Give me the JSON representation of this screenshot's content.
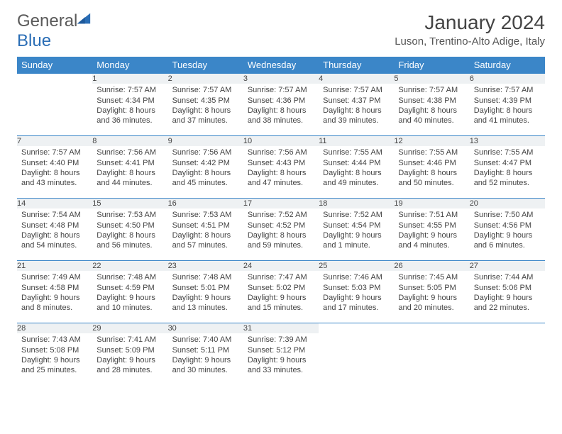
{
  "logo": {
    "part1": "General",
    "part2": "Blue"
  },
  "title": "January 2024",
  "location": "Luson, Trentino-Alto Adige, Italy",
  "colors": {
    "header_bg": "#3b86c8",
    "daynum_bg": "#eef1f3",
    "row_border": "#3b86c8"
  },
  "weekdays": [
    "Sunday",
    "Monday",
    "Tuesday",
    "Wednesday",
    "Thursday",
    "Friday",
    "Saturday"
  ],
  "weeks": [
    [
      null,
      {
        "n": "1",
        "sr": "Sunrise: 7:57 AM",
        "ss": "Sunset: 4:34 PM",
        "d1": "Daylight: 8 hours",
        "d2": "and 36 minutes."
      },
      {
        "n": "2",
        "sr": "Sunrise: 7:57 AM",
        "ss": "Sunset: 4:35 PM",
        "d1": "Daylight: 8 hours",
        "d2": "and 37 minutes."
      },
      {
        "n": "3",
        "sr": "Sunrise: 7:57 AM",
        "ss": "Sunset: 4:36 PM",
        "d1": "Daylight: 8 hours",
        "d2": "and 38 minutes."
      },
      {
        "n": "4",
        "sr": "Sunrise: 7:57 AM",
        "ss": "Sunset: 4:37 PM",
        "d1": "Daylight: 8 hours",
        "d2": "and 39 minutes."
      },
      {
        "n": "5",
        "sr": "Sunrise: 7:57 AM",
        "ss": "Sunset: 4:38 PM",
        "d1": "Daylight: 8 hours",
        "d2": "and 40 minutes."
      },
      {
        "n": "6",
        "sr": "Sunrise: 7:57 AM",
        "ss": "Sunset: 4:39 PM",
        "d1": "Daylight: 8 hours",
        "d2": "and 41 minutes."
      }
    ],
    [
      {
        "n": "7",
        "sr": "Sunrise: 7:57 AM",
        "ss": "Sunset: 4:40 PM",
        "d1": "Daylight: 8 hours",
        "d2": "and 43 minutes."
      },
      {
        "n": "8",
        "sr": "Sunrise: 7:56 AM",
        "ss": "Sunset: 4:41 PM",
        "d1": "Daylight: 8 hours",
        "d2": "and 44 minutes."
      },
      {
        "n": "9",
        "sr": "Sunrise: 7:56 AM",
        "ss": "Sunset: 4:42 PM",
        "d1": "Daylight: 8 hours",
        "d2": "and 45 minutes."
      },
      {
        "n": "10",
        "sr": "Sunrise: 7:56 AM",
        "ss": "Sunset: 4:43 PM",
        "d1": "Daylight: 8 hours",
        "d2": "and 47 minutes."
      },
      {
        "n": "11",
        "sr": "Sunrise: 7:55 AM",
        "ss": "Sunset: 4:44 PM",
        "d1": "Daylight: 8 hours",
        "d2": "and 49 minutes."
      },
      {
        "n": "12",
        "sr": "Sunrise: 7:55 AM",
        "ss": "Sunset: 4:46 PM",
        "d1": "Daylight: 8 hours",
        "d2": "and 50 minutes."
      },
      {
        "n": "13",
        "sr": "Sunrise: 7:55 AM",
        "ss": "Sunset: 4:47 PM",
        "d1": "Daylight: 8 hours",
        "d2": "and 52 minutes."
      }
    ],
    [
      {
        "n": "14",
        "sr": "Sunrise: 7:54 AM",
        "ss": "Sunset: 4:48 PM",
        "d1": "Daylight: 8 hours",
        "d2": "and 54 minutes."
      },
      {
        "n": "15",
        "sr": "Sunrise: 7:53 AM",
        "ss": "Sunset: 4:50 PM",
        "d1": "Daylight: 8 hours",
        "d2": "and 56 minutes."
      },
      {
        "n": "16",
        "sr": "Sunrise: 7:53 AM",
        "ss": "Sunset: 4:51 PM",
        "d1": "Daylight: 8 hours",
        "d2": "and 57 minutes."
      },
      {
        "n": "17",
        "sr": "Sunrise: 7:52 AM",
        "ss": "Sunset: 4:52 PM",
        "d1": "Daylight: 8 hours",
        "d2": "and 59 minutes."
      },
      {
        "n": "18",
        "sr": "Sunrise: 7:52 AM",
        "ss": "Sunset: 4:54 PM",
        "d1": "Daylight: 9 hours",
        "d2": "and 1 minute."
      },
      {
        "n": "19",
        "sr": "Sunrise: 7:51 AM",
        "ss": "Sunset: 4:55 PM",
        "d1": "Daylight: 9 hours",
        "d2": "and 4 minutes."
      },
      {
        "n": "20",
        "sr": "Sunrise: 7:50 AM",
        "ss": "Sunset: 4:56 PM",
        "d1": "Daylight: 9 hours",
        "d2": "and 6 minutes."
      }
    ],
    [
      {
        "n": "21",
        "sr": "Sunrise: 7:49 AM",
        "ss": "Sunset: 4:58 PM",
        "d1": "Daylight: 9 hours",
        "d2": "and 8 minutes."
      },
      {
        "n": "22",
        "sr": "Sunrise: 7:48 AM",
        "ss": "Sunset: 4:59 PM",
        "d1": "Daylight: 9 hours",
        "d2": "and 10 minutes."
      },
      {
        "n": "23",
        "sr": "Sunrise: 7:48 AM",
        "ss": "Sunset: 5:01 PM",
        "d1": "Daylight: 9 hours",
        "d2": "and 13 minutes."
      },
      {
        "n": "24",
        "sr": "Sunrise: 7:47 AM",
        "ss": "Sunset: 5:02 PM",
        "d1": "Daylight: 9 hours",
        "d2": "and 15 minutes."
      },
      {
        "n": "25",
        "sr": "Sunrise: 7:46 AM",
        "ss": "Sunset: 5:03 PM",
        "d1": "Daylight: 9 hours",
        "d2": "and 17 minutes."
      },
      {
        "n": "26",
        "sr": "Sunrise: 7:45 AM",
        "ss": "Sunset: 5:05 PM",
        "d1": "Daylight: 9 hours",
        "d2": "and 20 minutes."
      },
      {
        "n": "27",
        "sr": "Sunrise: 7:44 AM",
        "ss": "Sunset: 5:06 PM",
        "d1": "Daylight: 9 hours",
        "d2": "and 22 minutes."
      }
    ],
    [
      {
        "n": "28",
        "sr": "Sunrise: 7:43 AM",
        "ss": "Sunset: 5:08 PM",
        "d1": "Daylight: 9 hours",
        "d2": "and 25 minutes."
      },
      {
        "n": "29",
        "sr": "Sunrise: 7:41 AM",
        "ss": "Sunset: 5:09 PM",
        "d1": "Daylight: 9 hours",
        "d2": "and 28 minutes."
      },
      {
        "n": "30",
        "sr": "Sunrise: 7:40 AM",
        "ss": "Sunset: 5:11 PM",
        "d1": "Daylight: 9 hours",
        "d2": "and 30 minutes."
      },
      {
        "n": "31",
        "sr": "Sunrise: 7:39 AM",
        "ss": "Sunset: 5:12 PM",
        "d1": "Daylight: 9 hours",
        "d2": "and 33 minutes."
      },
      null,
      null,
      null
    ]
  ]
}
